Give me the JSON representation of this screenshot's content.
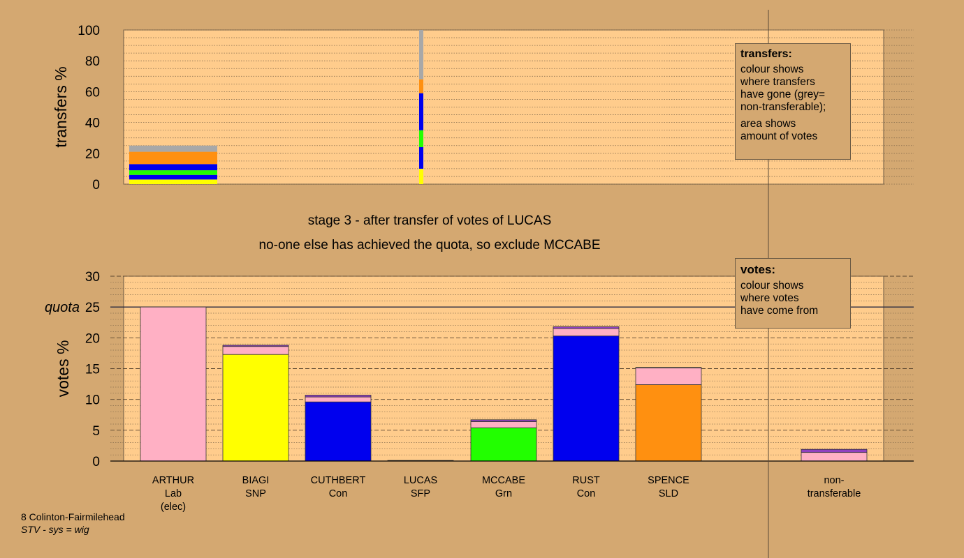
{
  "colors": {
    "page_bg": "#d4a871",
    "plot_bg": "#ffcc8c",
    "Lab": "#ffb0c4",
    "SNP": "#ffff00",
    "Con": "#0000ee",
    "Grn": "#22ff00",
    "SLD": "#ff9010",
    "SFP": "#9040c0",
    "nontransferable": "#a8a8a8"
  },
  "stage": {
    "line1": "stage 3 - after transfer of votes of LUCAS",
    "line2": "no-one else has achieved the quota, so exclude MCCABE"
  },
  "legends": {
    "transfers": {
      "title": "transfers:",
      "lines1": [
        "colour shows",
        "where transfers",
        "have gone (grey=",
        "non-transferable);"
      ],
      "lines2": [
        "area shows",
        "amount of votes"
      ]
    },
    "votes": {
      "title": "votes:",
      "lines1": [
        "colour shows",
        "where votes",
        "have come from"
      ]
    }
  },
  "footer": {
    "constituency": "8 Colinton-Fairmilehead",
    "system": "STV - sys = wig"
  },
  "chart_data": [
    {
      "type": "bar",
      "name": "transfers",
      "ylabel": "transfers %",
      "ylim": [
        0,
        100
      ],
      "yticks": [
        0,
        20,
        40,
        60,
        80,
        100
      ],
      "bars": [
        {
          "position": "ARTHUR",
          "width": "wide",
          "segments": [
            {
              "party": "SNP",
              "value": 3
            },
            {
              "party": "Con",
              "value": 3
            },
            {
              "party": "Grn",
              "value": 3
            },
            {
              "party": "Con",
              "value": 4
            },
            {
              "party": "SLD",
              "value": 8
            },
            {
              "party": "nontransferable",
              "value": 4
            }
          ]
        },
        {
          "position": "LUCAS",
          "width": "thin",
          "segments": [
            {
              "party": "SNP",
              "value": 10
            },
            {
              "party": "Con",
              "value": 14
            },
            {
              "party": "Grn",
              "value": 11
            },
            {
              "party": "Con",
              "value": 24
            },
            {
              "party": "SLD",
              "value": 9
            },
            {
              "party": "nontransferable",
              "value": 32
            }
          ]
        }
      ]
    },
    {
      "type": "bar",
      "name": "votes",
      "ylabel": "votes %",
      "ylim": [
        0,
        30
      ],
      "yticks": [
        0,
        5,
        10,
        15,
        20,
        25,
        30
      ],
      "quota": {
        "label": "quota",
        "value": 25
      },
      "categories": [
        "ARTHUR",
        "BIAGI",
        "CUTHBERT",
        "LUCAS",
        "MCCABE",
        "RUST",
        "SPENCE",
        "non-transferable"
      ],
      "tick_labels": [
        [
          "ARTHUR",
          "Lab",
          "(elec)"
        ],
        [
          "BIAGI",
          "SNP"
        ],
        [
          "CUTHBERT",
          "Con"
        ],
        [
          "LUCAS",
          "SFP"
        ],
        [
          "MCCABE",
          "Grn"
        ],
        [
          "RUST",
          "Con"
        ],
        [
          "SPENCE",
          "SLD"
        ],
        [
          "non-",
          "transferable"
        ]
      ],
      "stacks": [
        [
          {
            "party": "Lab",
            "value": 25.0
          }
        ],
        [
          {
            "party": "SNP",
            "value": 17.3
          },
          {
            "party": "Lab",
            "value": 1.3
          },
          {
            "party": "SFP",
            "value": 0.2
          }
        ],
        [
          {
            "party": "Con",
            "value": 9.6
          },
          {
            "party": "Lab",
            "value": 0.8
          },
          {
            "party": "SFP",
            "value": 0.3
          }
        ],
        [
          {
            "party": "SFP",
            "value": 0.1
          }
        ],
        [
          {
            "party": "Grn",
            "value": 5.4
          },
          {
            "party": "Lab",
            "value": 1.0
          },
          {
            "party": "SFP",
            "value": 0.3
          }
        ],
        [
          {
            "party": "Con",
            "value": 20.3
          },
          {
            "party": "Lab",
            "value": 1.2
          },
          {
            "party": "SFP",
            "value": 0.3
          }
        ],
        [
          {
            "party": "SLD",
            "value": 12.4
          },
          {
            "party": "Lab",
            "value": 2.7
          },
          {
            "party": "SFP",
            "value": 0.1
          }
        ],
        [
          {
            "party": "Lab",
            "value": 1.4
          },
          {
            "party": "SFP",
            "value": 0.5
          }
        ]
      ]
    }
  ]
}
